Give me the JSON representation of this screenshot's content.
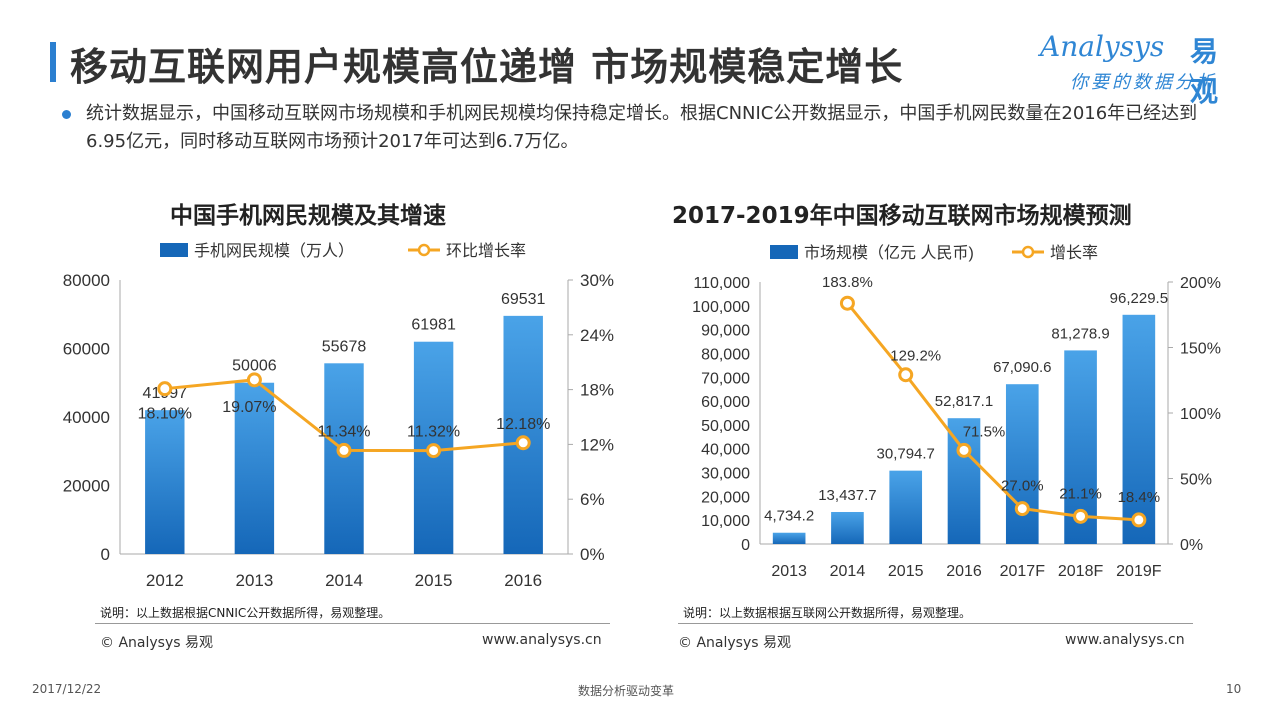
{
  "header": {
    "title": "移动互联网用户规模高位递增 市场规模稳定增长",
    "logo_en": "Analysys",
    "logo_cn": "易观",
    "logo_slogan": "你要的数据分析"
  },
  "summary": "统计数据显示，中国移动互联网市场规模和手机网民规模均保持稳定增长。根据CNNIC公开数据显示，中国手机网民数量在2016年已经达到6.95亿元，同时移动互联网市场预计2017年可达到6.7万亿。",
  "left_panel": {
    "title": "中国手机网民规模及其增速",
    "note": "说明：以上数据根据CNNIC公开数据所得，易观整理。",
    "copyright": "© Analysys 易观",
    "website": "www.analysys.cn"
  },
  "right_panel": {
    "title": "2017-2019年中国移动互联网市场规模预测",
    "note": "说明：以上数据根据互联网公开数据所得，易观整理。",
    "copyright": "© Analysys 易观",
    "website": "www.analysys.cn"
  },
  "footer": {
    "date": "2017/12/22",
    "center": "数据分析驱动变革",
    "page": "10"
  },
  "colors": {
    "bar_top": "#4aa3e8",
    "bar_bottom": "#1567b8",
    "line": "#f5a623",
    "accent": "#2b7fd0"
  },
  "chart_data": [
    {
      "type": "bar+line",
      "title": "中国手机网民规模及其增速",
      "categories": [
        "2012",
        "2013",
        "2014",
        "2015",
        "2016"
      ],
      "series": [
        {
          "name": "手机网民规模（万人）",
          "type": "bar",
          "axis": "left",
          "values": [
            41997,
            50006,
            55678,
            61981,
            69531
          ],
          "labels": [
            "41997",
            "50006",
            "55678",
            "61981",
            "69531"
          ]
        },
        {
          "name": "环比增长率",
          "type": "line",
          "axis": "right",
          "values": [
            18.1,
            19.07,
            11.34,
            11.32,
            12.18
          ],
          "labels": [
            "18.10%",
            "19.07%",
            "11.34%",
            "11.32%",
            "12.18%"
          ]
        }
      ],
      "ylim_left": [
        0,
        80000
      ],
      "yticks_left": [
        "0",
        "20000",
        "40000",
        "60000",
        "80000"
      ],
      "ylim_right": [
        0,
        30
      ],
      "yticks_right": [
        "0%",
        "6%",
        "12%",
        "18%",
        "24%",
        "30%"
      ],
      "grid": false,
      "legend": "top"
    },
    {
      "type": "bar+line",
      "title": "2017-2019年中国移动互联网市场规模预测",
      "categories": [
        "2013",
        "2014",
        "2015",
        "2016",
        "2017F",
        "2018F",
        "2019F"
      ],
      "series": [
        {
          "name": "市场规模（亿元 人民币)",
          "type": "bar",
          "axis": "left",
          "values": [
            4734.2,
            13437.7,
            30794.7,
            52817.1,
            67090.6,
            81278.9,
            96229.5
          ],
          "labels": [
            "4,734.2",
            "13,437.7",
            "30,794.7",
            "52,817.1",
            "67,090.6",
            "81,278.9",
            "96,229.5"
          ]
        },
        {
          "name": "增长率",
          "type": "line",
          "axis": "right",
          "values": [
            null,
            183.8,
            129.2,
            71.5,
            27.0,
            21.1,
            18.4
          ],
          "labels": [
            "",
            "183.8%",
            "129.2%",
            "71.5%",
            "27.0%",
            "21.1%",
            "18.4%"
          ]
        }
      ],
      "ylim_left": [
        0,
        110000
      ],
      "yticks_left": [
        "0",
        "10,000",
        "20,000",
        "30,000",
        "40,000",
        "50,000",
        "60,000",
        "70,000",
        "80,000",
        "90,000",
        "100,000",
        "110,000"
      ],
      "ylim_right": [
        0,
        200
      ],
      "yticks_right": [
        "0%",
        "50%",
        "100%",
        "150%",
        "200%"
      ],
      "grid": false,
      "legend": "top"
    }
  ]
}
